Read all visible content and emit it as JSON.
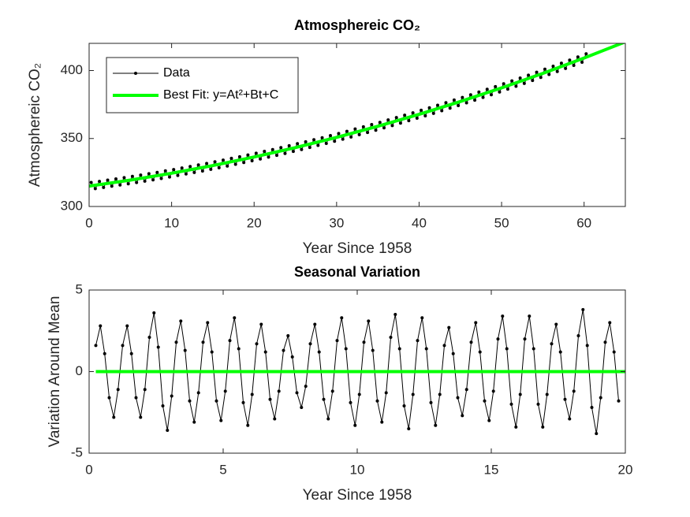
{
  "chart_data": [
    {
      "type": "line",
      "title": "Atmosphereic CO₂",
      "x_label": "Year Since 1958",
      "y_label": "Atmosphereic CO₂",
      "xlim": [
        0,
        65
      ],
      "xticks": [
        0,
        10,
        20,
        30,
        40,
        50,
        60
      ],
      "ylim": [
        300,
        420
      ],
      "yticks": [
        300,
        350,
        400
      ],
      "legend": "upper left",
      "series": [
        {
          "name": "Data",
          "color": "#000000",
          "markers": true,
          "line_width": 1,
          "x": [
            0.25,
            0.75,
            1.25,
            1.75,
            2.25,
            2.75,
            3.25,
            3.75,
            4.25,
            4.75,
            5.25,
            5.75,
            6.25,
            6.75,
            7.25,
            7.75,
            8.25,
            8.75,
            9.25,
            9.75,
            10.25,
            10.75,
            11.25,
            11.75,
            12.25,
            12.75,
            13.25,
            13.75,
            14.25,
            14.75,
            15.25,
            15.75,
            16.25,
            16.75,
            17.25,
            17.75,
            18.25,
            18.75,
            19.25,
            19.75,
            20.25,
            20.75,
            21.25,
            21.75,
            22.25,
            22.75,
            23.25,
            23.75,
            24.25,
            24.75,
            25.25,
            25.75,
            26.25,
            26.75,
            27.25,
            27.75,
            28.25,
            28.75,
            29.25,
            29.75,
            30.25,
            30.75,
            31.25,
            31.75,
            32.25,
            32.75,
            33.25,
            33.75,
            34.25,
            34.75,
            35.25,
            35.75,
            36.25,
            36.75,
            37.25,
            37.75,
            38.25,
            38.75,
            39.25,
            39.75,
            40.25,
            40.75,
            41.25,
            41.75,
            42.25,
            42.75,
            43.25,
            43.75,
            44.25,
            44.75,
            45.25,
            45.75,
            46.25,
            46.75,
            47.25,
            47.75,
            48.25,
            48.75,
            49.25,
            49.75,
            50.25,
            50.75,
            51.25,
            51.75,
            52.25,
            52.75,
            53.25,
            53.75,
            54.25,
            54.75,
            55.25,
            55.75,
            56.25,
            56.75,
            57.25,
            57.75,
            58.25,
            58.75,
            59.25,
            59.75,
            60.25
          ],
          "values": [
            317.7,
            313.1,
            318.5,
            314.0,
            319.4,
            314.9,
            320.3,
            315.8,
            321.2,
            316.7,
            322.2,
            317.6,
            323.1,
            318.6,
            324.1,
            319.6,
            325.1,
            320.6,
            326.2,
            321.7,
            327.2,
            322.8,
            328.3,
            323.9,
            329.4,
            325.0,
            330.6,
            326.1,
            331.7,
            327.3,
            332.9,
            328.5,
            334.1,
            329.7,
            335.4,
            331.0,
            336.6,
            332.3,
            337.9,
            333.6,
            339.2,
            334.9,
            340.6,
            336.3,
            341.9,
            337.6,
            343.3,
            339.0,
            344.7,
            340.5,
            346.2,
            341.9,
            347.6,
            343.4,
            349.1,
            344.9,
            350.6,
            346.4,
            352.2,
            348.0,
            353.7,
            349.5,
            355.3,
            351.1,
            357.0,
            352.8,
            358.6,
            354.4,
            360.3,
            356.1,
            361.9,
            357.8,
            363.7,
            359.5,
            365.4,
            361.3,
            367.2,
            363.1,
            368.9,
            364.9,
            370.8,
            366.7,
            372.6,
            368.5,
            374.5,
            370.4,
            376.4,
            372.3,
            378.3,
            374.2,
            380.2,
            376.2,
            382.2,
            378.2,
            384.2,
            380.2,
            386.2,
            382.2,
            388.2,
            384.2,
            390.3,
            386.3,
            392.4,
            388.4,
            394.5,
            390.5,
            396.6,
            392.7,
            398.8,
            394.9,
            401.0,
            397.1,
            403.2,
            399.3,
            405.4,
            401.5,
            407.7,
            403.8,
            410.0,
            406.1,
            412.3
          ]
        },
        {
          "name": "Best Fit: y=At²+Bt+C",
          "color": "#00ff00",
          "markers": false,
          "line_width": 4,
          "x": [
            0,
            5,
            10,
            15,
            20,
            25,
            30,
            35,
            40,
            45,
            50,
            55,
            60,
            65
          ],
          "values": [
            315,
            319.41,
            324.45,
            330.11,
            336.4,
            343.31,
            350.85,
            359.01,
            367.8,
            377.21,
            387.25,
            397.91,
            409.2,
            421.11
          ]
        }
      ]
    },
    {
      "type": "line",
      "title": "Seasonal Variation",
      "x_label": "Year Since 1958",
      "y_label": "Variation Around Mean",
      "xlim": [
        0,
        20
      ],
      "xticks": [
        0,
        5,
        10,
        15,
        20
      ],
      "ylim": [
        -5,
        5
      ],
      "yticks": [
        -5,
        0,
        5
      ],
      "series": [
        {
          "color": "#000000",
          "markers": true,
          "line_width": 1,
          "x": [
            0.25,
            0.42,
            0.58,
            0.75,
            0.92,
            1.08,
            1.25,
            1.42,
            1.58,
            1.75,
            1.92,
            2.08,
            2.25,
            2.42,
            2.58,
            2.75,
            2.92,
            3.08,
            3.25,
            3.42,
            3.58,
            3.75,
            3.92,
            4.08,
            4.25,
            4.42,
            4.58,
            4.75,
            4.92,
            5.08,
            5.25,
            5.42,
            5.58,
            5.75,
            5.92,
            6.08,
            6.25,
            6.42,
            6.58,
            6.75,
            6.92,
            7.08,
            7.25,
            7.42,
            7.58,
            7.75,
            7.92,
            8.08,
            8.25,
            8.42,
            8.58,
            8.75,
            8.92,
            9.08,
            9.25,
            9.42,
            9.58,
            9.75,
            9.92,
            10.08,
            10.25,
            10.42,
            10.58,
            10.75,
            10.92,
            11.08,
            11.25,
            11.42,
            11.58,
            11.75,
            11.92,
            12.08,
            12.25,
            12.42,
            12.58,
            12.75,
            12.92,
            13.08,
            13.25,
            13.42,
            13.58,
            13.75,
            13.92,
            14.08,
            14.25,
            14.42,
            14.58,
            14.75,
            14.92,
            15.08,
            15.25,
            15.42,
            15.58,
            15.75,
            15.92,
            16.08,
            16.25,
            16.42,
            16.58,
            16.75,
            16.92,
            17.08,
            17.25,
            17.42,
            17.58,
            17.75,
            17.92,
            18.08,
            18.25,
            18.42,
            18.58,
            18.75,
            18.92,
            19.08,
            19.25,
            19.42,
            19.58,
            19.75
          ],
          "values": [
            1.6,
            2.8,
            1.1,
            -1.6,
            -2.8,
            -1.1,
            1.6,
            2.8,
            1.1,
            -1.6,
            -2.8,
            -1.1,
            2.1,
            3.6,
            1.5,
            -2.1,
            -3.6,
            -1.5,
            1.8,
            3.1,
            1.3,
            -1.8,
            -3.1,
            -1.3,
            1.8,
            3.0,
            1.2,
            -1.8,
            -3.0,
            -1.2,
            1.9,
            3.3,
            1.4,
            -1.9,
            -3.3,
            -1.4,
            1.7,
            2.9,
            1.2,
            -1.7,
            -2.9,
            -1.2,
            1.3,
            2.2,
            0.9,
            -1.3,
            -2.2,
            -0.9,
            1.7,
            2.9,
            1.2,
            -1.7,
            -2.9,
            -1.2,
            1.9,
            3.3,
            1.4,
            -1.9,
            -3.3,
            -1.4,
            1.8,
            3.1,
            1.3,
            -1.8,
            -3.1,
            -1.3,
            2.1,
            3.5,
            1.4,
            -2.1,
            -3.5,
            -1.4,
            1.9,
            3.3,
            1.4,
            -1.9,
            -3.3,
            -1.4,
            1.6,
            2.7,
            1.1,
            -1.6,
            -2.7,
            -1.1,
            1.8,
            3.0,
            1.2,
            -1.8,
            -3.0,
            -1.2,
            2.0,
            3.4,
            1.4,
            -2.0,
            -3.4,
            -1.4,
            2.0,
            3.4,
            1.4,
            -2.0,
            -3.4,
            -1.4,
            1.7,
            2.9,
            1.2,
            -1.7,
            -2.9,
            -1.2,
            2.2,
            3.8,
            1.6,
            -2.2,
            -3.8,
            -1.6,
            1.8,
            3.0,
            1.2,
            -1.8
          ]
        },
        {
          "color": "#00ff00",
          "markers": false,
          "line_width": 4,
          "x": [
            0.25,
            20
          ],
          "values": [
            0,
            0
          ]
        }
      ]
    }
  ]
}
